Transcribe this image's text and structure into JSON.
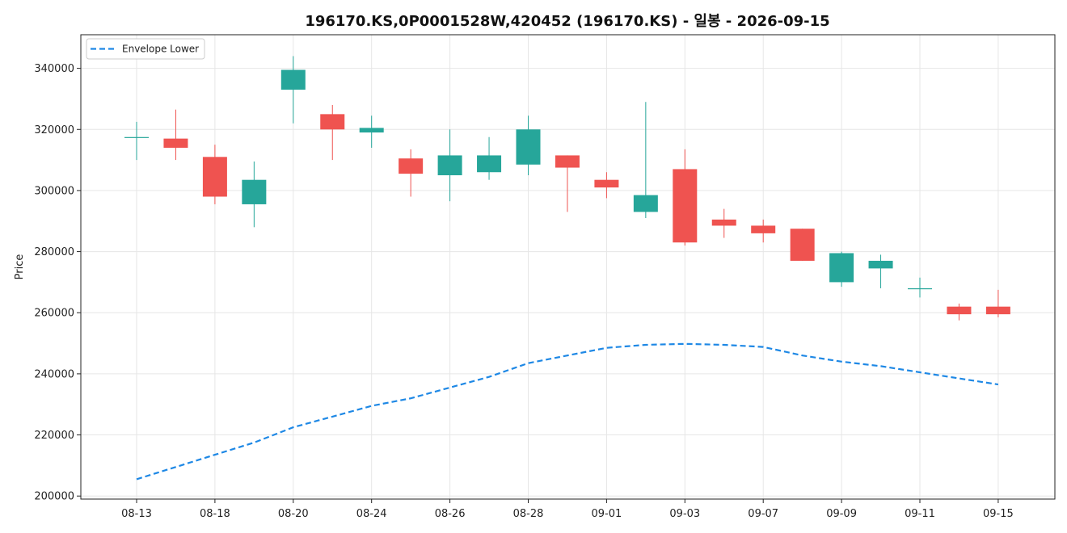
{
  "chart_data": {
    "type": "candlestick",
    "title": "196170.KS,0P0001528W,420452 (196170.KS) - 일봉 - 2026-09-15",
    "xlabel": "",
    "ylabel": "Price",
    "ylim": [
      199000,
      351000
    ],
    "yticks": [
      200000,
      220000,
      240000,
      260000,
      280000,
      300000,
      320000,
      340000
    ],
    "xticks": [
      "08-13",
      "08-18",
      "08-20",
      "08-24",
      "08-26",
      "08-28",
      "09-01",
      "09-03",
      "09-07",
      "09-09",
      "09-11",
      "09-15"
    ],
    "grid": true,
    "legend_position": "top-left",
    "colors": {
      "up": "#26a69a",
      "down": "#ef5350",
      "envelope": "#1e88e5"
    },
    "candles": [
      {
        "open": 317500,
        "high": 322500,
        "low": 310000,
        "close": 317500
      },
      {
        "open": 317000,
        "high": 326500,
        "low": 310000,
        "close": 314000
      },
      {
        "open": 311000,
        "high": 315000,
        "low": 295500,
        "close": 298000
      },
      {
        "open": 295500,
        "high": 309500,
        "low": 288000,
        "close": 303500
      },
      {
        "open": 333000,
        "high": 344000,
        "low": 322000,
        "close": 339500
      },
      {
        "open": 325000,
        "high": 328000,
        "low": 310000,
        "close": 320000
      },
      {
        "open": 319000,
        "high": 324500,
        "low": 314000,
        "close": 320500
      },
      {
        "open": 310500,
        "high": 313500,
        "low": 298000,
        "close": 305500
      },
      {
        "open": 305000,
        "high": 320000,
        "low": 296500,
        "close": 311500
      },
      {
        "open": 306000,
        "high": 317500,
        "low": 303500,
        "close": 311500
      },
      {
        "open": 308500,
        "high": 324500,
        "low": 305000,
        "close": 320000
      },
      {
        "open": 311500,
        "high": 311500,
        "low": 293000,
        "close": 307500
      },
      {
        "open": 303500,
        "high": 306000,
        "low": 297500,
        "close": 301000
      },
      {
        "open": 293000,
        "high": 329000,
        "low": 291000,
        "close": 298500
      },
      {
        "open": 307000,
        "high": 313500,
        "low": 282000,
        "close": 283000
      },
      {
        "open": 290500,
        "high": 294000,
        "low": 284500,
        "close": 288500
      },
      {
        "open": 288500,
        "high": 290500,
        "low": 283000,
        "close": 286000
      },
      {
        "open": 287500,
        "high": 287500,
        "low": 277000,
        "close": 277000
      },
      {
        "open": 270000,
        "high": 280000,
        "low": 268500,
        "close": 279500
      },
      {
        "open": 274500,
        "high": 279000,
        "low": 268000,
        "close": 277000
      },
      {
        "open": 268000,
        "high": 271500,
        "low": 265000,
        "close": 268000
      },
      {
        "open": 262000,
        "high": 263000,
        "low": 257500,
        "close": 259500
      },
      {
        "open": 262000,
        "high": 267500,
        "low": 258500,
        "close": 259500
      }
    ],
    "series": [
      {
        "name": "Envelope Lower",
        "style": "dashed",
        "values": [
          205500,
          209500,
          213500,
          217500,
          222500,
          226000,
          229500,
          232000,
          235500,
          239000,
          243500,
          246000,
          248500,
          249500,
          249800,
          249500,
          248800,
          246000,
          244000,
          242500,
          240500,
          238500,
          236500
        ]
      }
    ]
  }
}
